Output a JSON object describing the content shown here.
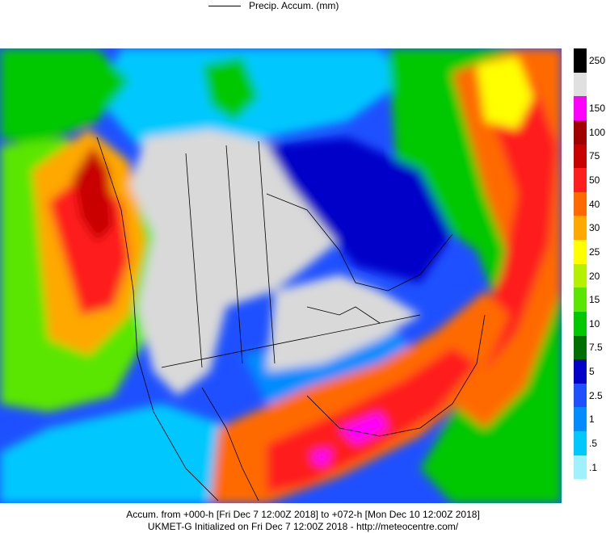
{
  "header": {
    "legend_label": "Precip. Accum. (mm)"
  },
  "footer": {
    "line1": "Accum. from +000-h [Fri Dec 7 12:00Z 2018] to +072-h [Mon Dec 10 12:00Z 2018]",
    "line2": "UKMET-G Initialized on Fri Dec 7 12:00Z 2018 - http://meteocentre.com/"
  },
  "colorbar": {
    "levels": [
      {
        "label": "250",
        "color": "#000000"
      },
      {
        "label": "",
        "color": "#e0e0e0"
      },
      {
        "label": "150",
        "color": "#ff00ff"
      },
      {
        "label": "100",
        "color": "#a00000"
      },
      {
        "label": "75",
        "color": "#c80000"
      },
      {
        "label": "50",
        "color": "#ff1e1e"
      },
      {
        "label": "40",
        "color": "#ff6a00"
      },
      {
        "label": "30",
        "color": "#ffa800"
      },
      {
        "label": "25",
        "color": "#ffff00"
      },
      {
        "label": "20",
        "color": "#b4f000"
      },
      {
        "label": "15",
        "color": "#5ae600"
      },
      {
        "label": "10",
        "color": "#00c800"
      },
      {
        "label": "7.5",
        "color": "#006e00"
      },
      {
        "label": "5",
        "color": "#0000c8"
      },
      {
        "label": "2.5",
        "color": "#1e50ff"
      },
      {
        "label": "1",
        "color": "#008cff"
      },
      {
        "label": ".5",
        "color": "#00c8ff"
      },
      {
        "label": ".1",
        "color": "#a0f0ff"
      },
      {
        "label": "",
        "color": "#ffffff"
      }
    ]
  },
  "map": {
    "colors": {
      "ocean_mid": "#1e50ff",
      "dry": "#d9d9d9",
      "border": "#000000"
    }
  }
}
